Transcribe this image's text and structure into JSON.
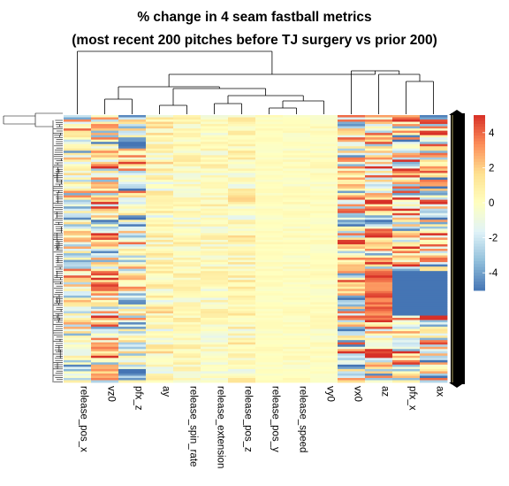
{
  "chart_data": {
    "type": "heatmap",
    "title": "% change in 4 seam fastball metrics",
    "subtitle": "(most recent 200 pitches before TJ surgery vs prior 200)",
    "columns": [
      "release_pos_x",
      "vz0",
      "pfx_z",
      "ay",
      "release_spin_rate",
      "release_extension",
      "release_pos_z",
      "release_pos_y",
      "release_speed",
      "vy0",
      "vx0",
      "az",
      "pfx_x",
      "ax"
    ],
    "legend": {
      "ticks": [
        4,
        2,
        0,
        -2,
        -4
      ],
      "range": [
        -5,
        5
      ],
      "colors": [
        "#4575b4",
        "#91bfdb",
        "#e0f3f8",
        "#ffffbf",
        "#fee090",
        "#fc8d59",
        "#d73027"
      ]
    },
    "row_count": 120,
    "column_profiles": [
      {
        "name": "release_pos_x",
        "mean": -0.5,
        "spread": 3.5
      },
      {
        "name": "vz0",
        "mean": 0.5,
        "spread": 4.0
      },
      {
        "name": "pfx_z",
        "mean": -0.5,
        "spread": 4.0
      },
      {
        "name": "ay",
        "mean": 0.2,
        "spread": 1.5
      },
      {
        "name": "release_spin_rate",
        "mean": 0.1,
        "spread": 1.0
      },
      {
        "name": "release_extension",
        "mean": 0.0,
        "spread": 1.0
      },
      {
        "name": "release_pos_z",
        "mean": 0.3,
        "spread": 1.3
      },
      {
        "name": "release_pos_y",
        "mean": 0.0,
        "spread": 0.3
      },
      {
        "name": "release_speed",
        "mean": 0.0,
        "spread": 0.4
      },
      {
        "name": "vy0",
        "mean": 0.0,
        "spread": 0.4
      },
      {
        "name": "vx0",
        "mean": -0.5,
        "spread": 4.5
      },
      {
        "name": "az",
        "mean": 1.0,
        "spread": 4.5
      },
      {
        "name": "pfx_x",
        "mean": 0.5,
        "spread": 5.0
      },
      {
        "name": "ax",
        "mean": 0.5,
        "spread": 5.0
      }
    ],
    "grid": false,
    "legend_position": "right"
  }
}
